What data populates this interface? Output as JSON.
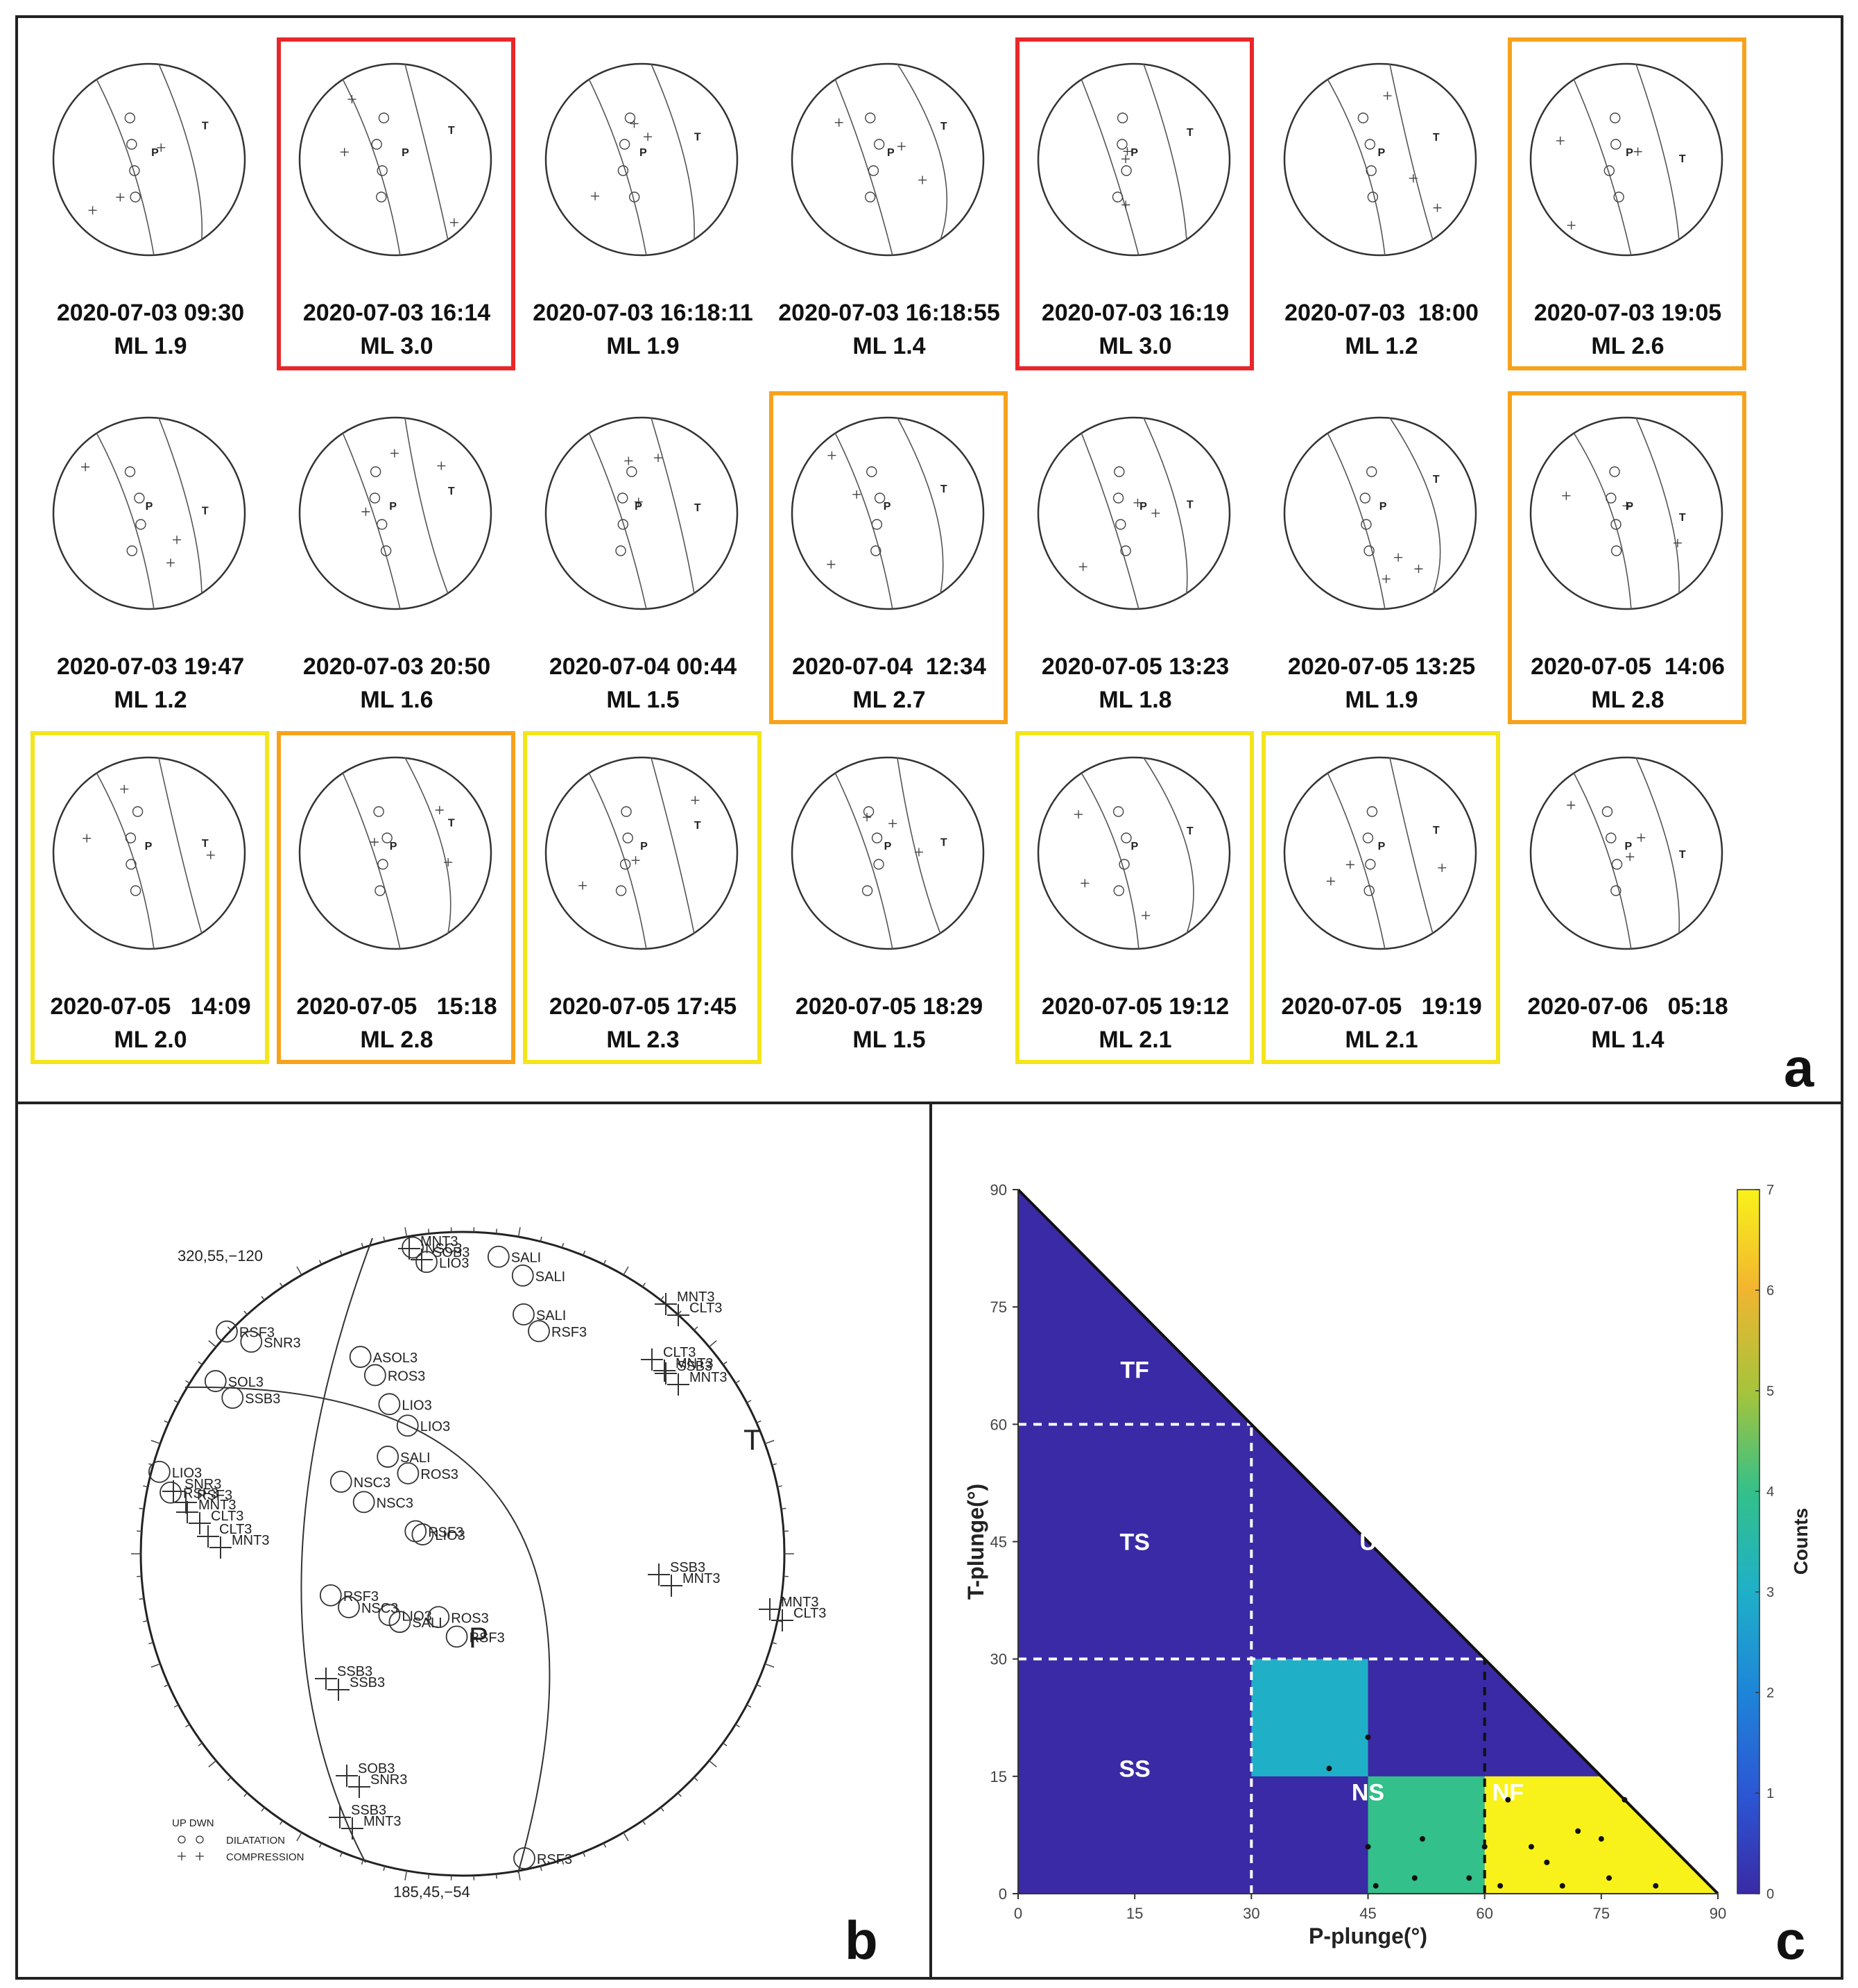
{
  "colors": {
    "red": "#e8272a",
    "orange": "#f7a21c",
    "yellow": "#f3e51b",
    "triangle_bg": "#3a2aa5",
    "cbar_low": "#3a2aa5",
    "cbar_mid": "#20b2aa",
    "cbar_high": "#f9f21a"
  },
  "panel_a": {
    "letter": "a",
    "events": [
      {
        "date": "2020-07-03 09:30",
        "mag": "ML 1.9",
        "highlight": "none"
      },
      {
        "date": "2020-07-03 16:14",
        "mag": "ML 3.0",
        "highlight": "red"
      },
      {
        "date": "2020-07-03 16:18:11",
        "mag": "ML 1.9",
        "highlight": "none"
      },
      {
        "date": "2020-07-03 16:18:55",
        "mag": "ML 1.4",
        "highlight": "none"
      },
      {
        "date": "2020-07-03 16:19",
        "mag": "ML 3.0",
        "highlight": "red"
      },
      {
        "date": "2020-07-03  18:00",
        "mag": "ML 1.2",
        "highlight": "none"
      },
      {
        "date": "2020-07-03 19:05",
        "mag": "ML 2.6",
        "highlight": "orange"
      },
      {
        "date": "2020-07-03 19:47",
        "mag": "ML 1.2",
        "highlight": "none"
      },
      {
        "date": "2020-07-03 20:50",
        "mag": "ML 1.6",
        "highlight": "none"
      },
      {
        "date": "2020-07-04 00:44",
        "mag": "ML 1.5",
        "highlight": "none"
      },
      {
        "date": "2020-07-04  12:34",
        "mag": "ML 2.7",
        "highlight": "orange"
      },
      {
        "date": "2020-07-05 13:23",
        "mag": "ML 1.8",
        "highlight": "none"
      },
      {
        "date": "2020-07-05 13:25",
        "mag": "ML 1.9",
        "highlight": "none"
      },
      {
        "date": "2020-07-05  14:06",
        "mag": "ML 2.8",
        "highlight": "orange"
      },
      {
        "date": "2020-07-05   14:09",
        "mag": "ML 2.0",
        "highlight": "yellow"
      },
      {
        "date": "2020-07-05   15:18",
        "mag": "ML 2.8",
        "highlight": "orange"
      },
      {
        "date": "2020-07-05 17:45",
        "mag": "ML 2.3",
        "highlight": "yellow"
      },
      {
        "date": "2020-07-05 18:29",
        "mag": "ML 1.5",
        "highlight": "none"
      },
      {
        "date": "2020-07-05 19:12",
        "mag": "ML 2.1",
        "highlight": "yellow"
      },
      {
        "date": "2020-07-05   19:19",
        "mag": "ML 2.1",
        "highlight": "yellow"
      },
      {
        "date": "2020-07-06   05:18",
        "mag": "ML 1.4",
        "highlight": "none"
      }
    ]
  },
  "panel_b": {
    "letter": "b",
    "plane1_label": "320,55,−120",
    "plane2_label": "185,45,−54",
    "legend_header": "UP DWN",
    "legend_dilatation": "DILATATION",
    "legend_compression": "COMPRESSION",
    "t_axis": "T",
    "p_axis": "P",
    "stations_dilatation": [
      "NSC3",
      "LIO3",
      "SALI",
      "SALI",
      "SALI",
      "RSF3",
      "RSF3",
      "SNR3",
      "SOL3",
      "SSB3",
      "ASOL3",
      "ROS3",
      "LIO3",
      "LIO3",
      "LIO3",
      "RSF3",
      "SALI",
      "ROS3",
      "NSC3",
      "NSC3",
      "RSF3",
      "LIO3",
      "RSF3",
      "NSC3",
      "LIO3",
      "SALI",
      "ROS3",
      "RSF3",
      "RSF3",
      "SOB3"
    ],
    "stations_compression": [
      "MNT3",
      "CLT3",
      "CLT3",
      "MNT3",
      "SSB3",
      "MNT3",
      "MNT3",
      "SOB3",
      "SSB3",
      "MNT3",
      "MNT3",
      "CLT3",
      "SSB3",
      "SSB3",
      "SOB3",
      "SNR3",
      "SSB3",
      "MNT3",
      "SNR3",
      "RSF3"
    ]
  },
  "panel_c": {
    "letter": "c",
    "chart_data": {
      "type": "heatmap",
      "xlabel": "P-plunge(°)",
      "ylabel": "T-plunge(°)",
      "colorbar_label": "Counts",
      "xlim": [
        0,
        90
      ],
      "ylim": [
        0,
        90
      ],
      "x_ticks": [
        0,
        15,
        30,
        45,
        60,
        75,
        90
      ],
      "y_ticks": [
        0,
        15,
        30,
        45,
        60,
        75,
        90
      ],
      "colorbar_range": [
        0,
        7
      ],
      "colorbar_ticks": [
        0,
        1,
        2,
        3,
        4,
        5,
        6,
        7
      ],
      "cells": [
        {
          "x": [
            30,
            45
          ],
          "y": [
            15,
            30
          ],
          "count": 3
        },
        {
          "x": [
            45,
            60
          ],
          "y": [
            0,
            15
          ],
          "count": 4
        },
        {
          "x": [
            60,
            90
          ],
          "y": [
            0,
            15
          ],
          "count": 7
        }
      ],
      "regions": [
        {
          "label": "TF",
          "x": 15,
          "y": 67
        },
        {
          "label": "TS",
          "x": 15,
          "y": 45
        },
        {
          "label": "U",
          "x": 45,
          "y": 45
        },
        {
          "label": "SS",
          "x": 15,
          "y": 16
        },
        {
          "label": "NS",
          "x": 45,
          "y": 13
        },
        {
          "label": "NF",
          "x": 63,
          "y": 13
        }
      ],
      "points": [
        {
          "x": 40,
          "y": 16
        },
        {
          "x": 45,
          "y": 20
        },
        {
          "x": 45,
          "y": 6
        },
        {
          "x": 46,
          "y": 1
        },
        {
          "x": 51,
          "y": 2
        },
        {
          "x": 52,
          "y": 7
        },
        {
          "x": 58,
          "y": 2
        },
        {
          "x": 60,
          "y": 6
        },
        {
          "x": 63,
          "y": 12
        },
        {
          "x": 66,
          "y": 6
        },
        {
          "x": 68,
          "y": 4
        },
        {
          "x": 70,
          "y": 1
        },
        {
          "x": 72,
          "y": 8
        },
        {
          "x": 75,
          "y": 7
        },
        {
          "x": 76,
          "y": 2
        },
        {
          "x": 78,
          "y": 12
        },
        {
          "x": 82,
          "y": 1
        },
        {
          "x": 62,
          "y": 1
        }
      ]
    }
  }
}
